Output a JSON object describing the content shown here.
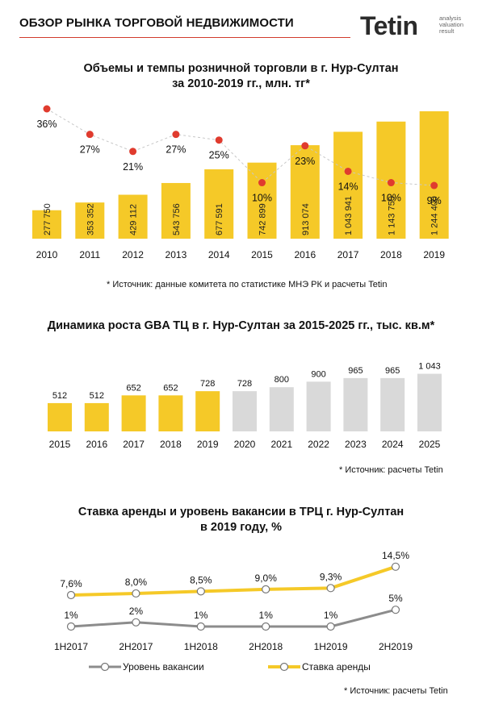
{
  "header": {
    "title": "ОБЗОР РЫНКА ТОРГОВОЙ НЕДВИЖИМОСТИ",
    "logo": "Tetin",
    "logo_tagline": [
      "analysis",
      "valuation",
      "result"
    ],
    "accent_color": "#d23b2c"
  },
  "chart_data": [
    {
      "type": "bar",
      "title_lines": [
        "Объемы и темпы розничной торговли в г. Нур-Султан",
        "за 2010-2019 гг., млн. тг*"
      ],
      "categories": [
        "2010",
        "2011",
        "2012",
        "2013",
        "2014",
        "2015",
        "2016",
        "2017",
        "2018",
        "2019"
      ],
      "series": [
        {
          "values": [
            277750,
            353352,
            429112,
            543756,
            677591,
            742899,
            913074,
            1043941,
            1143750,
            1244400
          ],
          "labels": [
            "277 750",
            "353 352",
            "429 112",
            "543 756",
            "677 591",
            "742 899",
            "913 074",
            "1 043 941",
            "1 143 750",
            "1 244 400"
          ],
          "color": "#f5c928"
        },
        {
          "type": "line",
          "values": [
            36,
            27,
            21,
            27,
            25,
            10,
            23,
            14,
            10,
            9
          ],
          "labels": [
            "36%",
            "27%",
            "21%",
            "27%",
            "25%",
            "10%",
            "23%",
            "14%",
            "10%",
            "9%"
          ],
          "color": "#e03b2e"
        }
      ],
      "source": "* Источник: данные комитета по статистике МНЭ РК и расчеты Tetin"
    },
    {
      "type": "bar",
      "title": "Динамика роста GBA ТЦ в г. Нур-Султан за 2015-2025 гг., тыс. кв.м*",
      "categories": [
        "2015",
        "2016",
        "2017",
        "2018",
        "2019",
        "2020",
        "2021",
        "2022",
        "2023",
        "2024",
        "2025"
      ],
      "values": [
        512,
        512,
        652,
        652,
        728,
        728,
        800,
        900,
        965,
        965,
        1043
      ],
      "labels": [
        "512",
        "512",
        "652",
        "652",
        "728",
        "728",
        "800",
        "900",
        "965",
        "965",
        "1 043"
      ],
      "colors": [
        "#f5c928",
        "#f5c928",
        "#f5c928",
        "#f5c928",
        "#f5c928",
        "#d9d9d9",
        "#d9d9d9",
        "#d9d9d9",
        "#d9d9d9",
        "#d9d9d9",
        "#d9d9d9"
      ],
      "source": "* Источник: расчеты Tetin"
    },
    {
      "type": "line",
      "title_lines": [
        "Ставка аренды и уровень вакансии в ТРЦ г. Нур-Султан",
        "в 2019 году, %"
      ],
      "categories": [
        "1H2017",
        "2H2017",
        "1H2018",
        "2H2018",
        "1H2019",
        "2H2019"
      ],
      "series": [
        {
          "name": "Ставка аренды",
          "values": [
            7.6,
            8.0,
            8.5,
            9.0,
            9.3,
            14.5
          ],
          "labels": [
            "7,6%",
            "8,0%",
            "8,5%",
            "9,0%",
            "9,3%",
            "14,5%"
          ],
          "color": "#f5c928"
        },
        {
          "name": "Уровень вакансии",
          "values": [
            1,
            2,
            1,
            1,
            1,
            5
          ],
          "labels": [
            "1%",
            "2%",
            "1%",
            "1%",
            "1%",
            "5%"
          ],
          "color": "#8c8c8c"
        }
      ],
      "legend": "bottom",
      "source": "* Источник: расчеты Tetin"
    }
  ]
}
